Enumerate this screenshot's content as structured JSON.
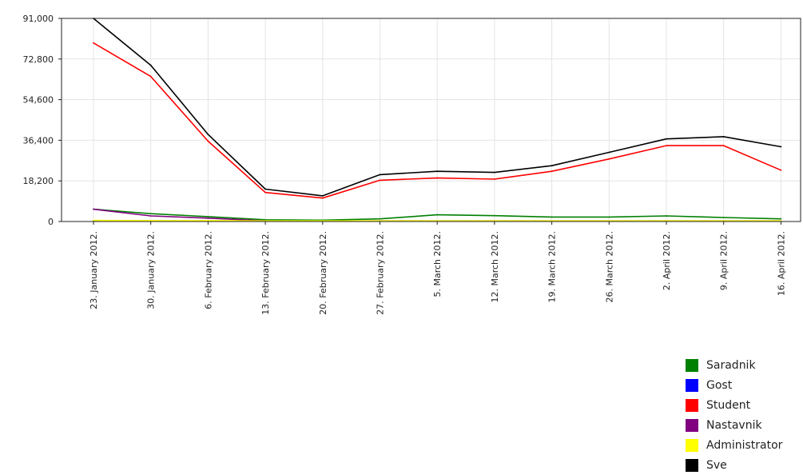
{
  "chart_data": {
    "type": "line",
    "title": "",
    "xlabel": "",
    "ylabel": "",
    "ylim": [
      0,
      91000
    ],
    "y_ticks": [
      "0",
      "18,200",
      "36,400",
      "54,600",
      "72,800",
      "91,000"
    ],
    "y_tick_values": [
      0,
      18200,
      36400,
      54600,
      72800,
      91000
    ],
    "grid": true,
    "legend_position": "bottom-right",
    "categories": [
      "23. January 2012.",
      "30. January 2012.",
      "6. February 2012.",
      "13. February 2012.",
      "20. February 2012.",
      "27. February 2012.",
      "5. March 2012.",
      "12. March 2012.",
      "19. March 2012.",
      "26. March 2012.",
      "2. April 2012.",
      "9. April 2012.",
      "16. April 2012."
    ],
    "series": [
      {
        "name": "Saradnik",
        "color": "#008000",
        "values": [
          5500,
          3500,
          2200,
          800,
          600,
          1200,
          3000,
          2600,
          2000,
          2000,
          2500,
          1800,
          1200
        ]
      },
      {
        "name": "Gost",
        "color": "#0000ff",
        "values": [
          200,
          200,
          200,
          200,
          200,
          200,
          200,
          200,
          200,
          200,
          200,
          200,
          200
        ]
      },
      {
        "name": "Student",
        "color": "#ff0000",
        "values": [
          80000,
          65000,
          36000,
          13000,
          10500,
          18500,
          19500,
          19000,
          22500,
          28000,
          34000,
          34000,
          23000
        ]
      },
      {
        "name": "Nastavnik",
        "color": "#800080",
        "values": [
          5500,
          2500,
          1500,
          300,
          200,
          300,
          300,
          300,
          300,
          300,
          300,
          300,
          300
        ]
      },
      {
        "name": "Administrator",
        "color": "#ffff00",
        "values": [
          500,
          400,
          400,
          300,
          300,
          300,
          300,
          300,
          300,
          300,
          300,
          300,
          300
        ]
      },
      {
        "name": "Sve",
        "color": "#000000",
        "values": [
          91000,
          70000,
          39000,
          14500,
          11500,
          21000,
          22500,
          22000,
          25000,
          31000,
          37000,
          38000,
          33500
        ]
      }
    ]
  }
}
